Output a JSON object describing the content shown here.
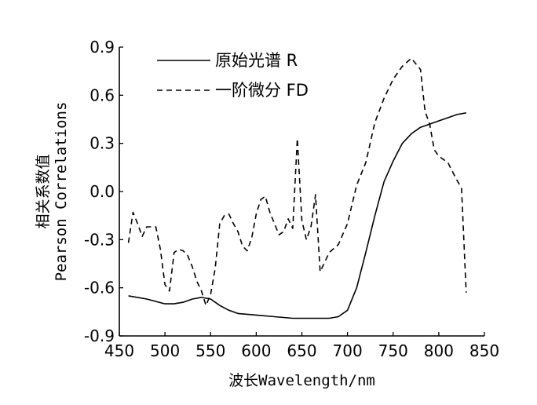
{
  "chart_data": {
    "type": "line",
    "xlabel": "波长Wavelength/nm",
    "ylabel_cn": "相关系数值",
    "ylabel_en": "Pearson Correlations",
    "xlim": [
      450,
      850
    ],
    "ylim": [
      -0.9,
      0.9
    ],
    "x_ticks": [
      "450",
      "500",
      "550",
      "600",
      "650",
      "700",
      "750",
      "800",
      "850"
    ],
    "y_ticks": [
      "0.9",
      "0.6",
      "0.3",
      "0.0",
      "-0.3",
      "-0.6",
      "-0.9"
    ],
    "x_tick_values": [
      450,
      500,
      550,
      600,
      650,
      700,
      750,
      800,
      850
    ],
    "y_tick_values": [
      0.9,
      0.6,
      0.3,
      0.0,
      -0.3,
      -0.6,
      -0.9
    ],
    "legend_position": "top-left",
    "series": [
      {
        "name": "原始光谱 R",
        "style": "solid",
        "color": "#000000",
        "points": [
          [
            460,
            -0.65
          ],
          [
            480,
            -0.67
          ],
          [
            500,
            -0.7
          ],
          [
            510,
            -0.7
          ],
          [
            520,
            -0.69
          ],
          [
            530,
            -0.67
          ],
          [
            540,
            -0.66
          ],
          [
            550,
            -0.67
          ],
          [
            560,
            -0.71
          ],
          [
            570,
            -0.74
          ],
          [
            580,
            -0.76
          ],
          [
            600,
            -0.77
          ],
          [
            620,
            -0.78
          ],
          [
            640,
            -0.79
          ],
          [
            660,
            -0.79
          ],
          [
            680,
            -0.79
          ],
          [
            690,
            -0.78
          ],
          [
            700,
            -0.74
          ],
          [
            710,
            -0.6
          ],
          [
            720,
            -0.38
          ],
          [
            730,
            -0.15
          ],
          [
            740,
            0.06
          ],
          [
            750,
            0.19
          ],
          [
            760,
            0.3
          ],
          [
            770,
            0.36
          ],
          [
            780,
            0.4
          ],
          [
            790,
            0.42
          ],
          [
            800,
            0.44
          ],
          [
            810,
            0.46
          ],
          [
            820,
            0.48
          ],
          [
            830,
            0.49
          ]
        ]
      },
      {
        "name": "一阶微分 FD",
        "style": "dashed",
        "color": "#000000",
        "points": [
          [
            460,
            -0.32
          ],
          [
            465,
            -0.13
          ],
          [
            470,
            -0.2
          ],
          [
            475,
            -0.28
          ],
          [
            480,
            -0.22
          ],
          [
            490,
            -0.22
          ],
          [
            495,
            -0.36
          ],
          [
            500,
            -0.58
          ],
          [
            505,
            -0.62
          ],
          [
            510,
            -0.38
          ],
          [
            515,
            -0.36
          ],
          [
            520,
            -0.37
          ],
          [
            525,
            -0.4
          ],
          [
            530,
            -0.47
          ],
          [
            535,
            -0.56
          ],
          [
            540,
            -0.62
          ],
          [
            545,
            -0.71
          ],
          [
            550,
            -0.64
          ],
          [
            555,
            -0.48
          ],
          [
            560,
            -0.2
          ],
          [
            565,
            -0.15
          ],
          [
            570,
            -0.14
          ],
          [
            575,
            -0.2
          ],
          [
            580,
            -0.25
          ],
          [
            585,
            -0.34
          ],
          [
            590,
            -0.37
          ],
          [
            595,
            -0.29
          ],
          [
            600,
            -0.14
          ],
          [
            605,
            -0.05
          ],
          [
            610,
            -0.03
          ],
          [
            615,
            -0.13
          ],
          [
            620,
            -0.2
          ],
          [
            625,
            -0.27
          ],
          [
            630,
            -0.25
          ],
          [
            635,
            -0.17
          ],
          [
            640,
            -0.23
          ],
          [
            645,
            0.33
          ],
          [
            650,
            -0.18
          ],
          [
            655,
            -0.3
          ],
          [
            660,
            -0.22
          ],
          [
            665,
            -0.02
          ],
          [
            670,
            -0.5
          ],
          [
            680,
            -0.38
          ],
          [
            690,
            -0.33
          ],
          [
            700,
            -0.2
          ],
          [
            710,
            0.04
          ],
          [
            720,
            0.18
          ],
          [
            730,
            0.43
          ],
          [
            740,
            0.58
          ],
          [
            750,
            0.7
          ],
          [
            760,
            0.78
          ],
          [
            770,
            0.83
          ],
          [
            780,
            0.76
          ],
          [
            785,
            0.5
          ],
          [
            790,
            0.42
          ],
          [
            795,
            0.26
          ],
          [
            800,
            0.22
          ],
          [
            810,
            0.18
          ],
          [
            820,
            0.07
          ],
          [
            825,
            0.02
          ],
          [
            830,
            -0.63
          ]
        ]
      }
    ]
  }
}
